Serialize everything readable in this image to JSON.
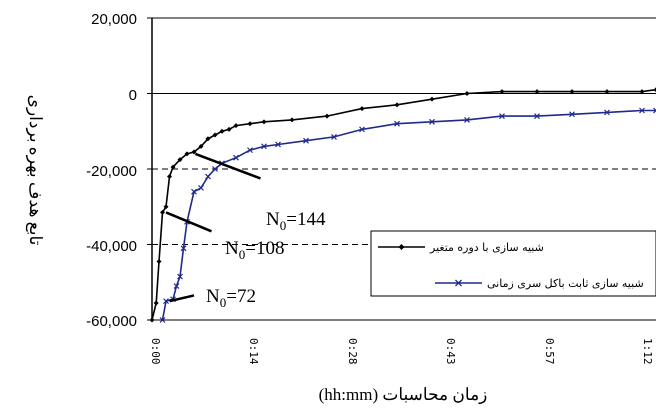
{
  "chart_data": {
    "type": "line",
    "xlabel": "زمان محاسبات (hh:mm)",
    "ylabel": "تابع هدف بهره برداری",
    "ylim": [
      -60000,
      20000
    ],
    "yticks": [
      "20,000",
      "0",
      "-20,000",
      "-40,000",
      "-60,000"
    ],
    "ytick_values": [
      20000,
      0,
      -20000,
      -40000,
      -60000
    ],
    "grid": "dashed horizontal at -20,000 and -40,000",
    "xtick_labels": [
      "0:00",
      "0:14",
      "0:28",
      "0:43",
      "0:57",
      "1:12"
    ],
    "legend_position": "right-inside",
    "series": [
      {
        "name": "شبیه سازی با دوره متغیر",
        "color": "#000000",
        "marker": "diamond",
        "x": [
          0.0,
          0.6,
          1.0,
          1.5,
          2.0,
          2.5,
          3.0,
          4.0,
          5.0,
          6.0,
          7.0,
          8.0,
          9.0,
          10.0,
          11.0,
          12.0,
          14.0,
          16.0,
          20.0,
          25.0,
          30.0,
          35.0,
          40.0,
          45.0,
          50.0,
          55.0,
          60.0,
          65.0,
          70.0,
          72.0
        ],
        "y": [
          -60000,
          -55500,
          -44500,
          -31500,
          -30000,
          -22000,
          -19500,
          -17500,
          -16000,
          -15500,
          -14000,
          -12000,
          -11000,
          -10000,
          -9500,
          -8500,
          -8000,
          -7500,
          -7000,
          -6000,
          -4000,
          -3000,
          -1500,
          0,
          500,
          500,
          500,
          500,
          500,
          1000
        ]
      },
      {
        "name": "شبیه سازی ثابت باکل سری زمانی",
        "color": "#1f2a8a",
        "marker": "x",
        "x": [
          1.5,
          2.0,
          3.0,
          3.5,
          4.0,
          4.5,
          5.0,
          6.0,
          7.0,
          8.0,
          9.0,
          10.0,
          12.0,
          14.0,
          16.0,
          18.0,
          22.0,
          26.0,
          30.0,
          35.0,
          40.0,
          45.0,
          50.0,
          55.0,
          60.0,
          65.0,
          70.0,
          72.0
        ],
        "y": [
          -60000,
          -55000,
          -54500,
          -51000,
          -48500,
          -41000,
          -34000,
          -26000,
          -25000,
          -22000,
          -20000,
          -18500,
          -17000,
          -15000,
          -14000,
          -13500,
          -12500,
          -11500,
          -9500,
          -8000,
          -7500,
          -7000,
          -6000,
          -6000,
          -5500,
          -5000,
          -4500,
          -4500
        ]
      }
    ],
    "annotations": [
      {
        "label": "N",
        "sub": "0",
        "text": "=144",
        "from": [
          6.2,
          -16000
        ],
        "to": [
          15.5,
          -22500
        ]
      },
      {
        "label": "N",
        "sub": "0",
        "text": "=108",
        "from": [
          2.0,
          -31500
        ],
        "to": [
          8.5,
          -36500
        ]
      },
      {
        "label": "N",
        "sub": "0",
        "text": "=72",
        "from": [
          2.5,
          -55000
        ],
        "to": [
          6.0,
          -53500
        ]
      }
    ]
  }
}
